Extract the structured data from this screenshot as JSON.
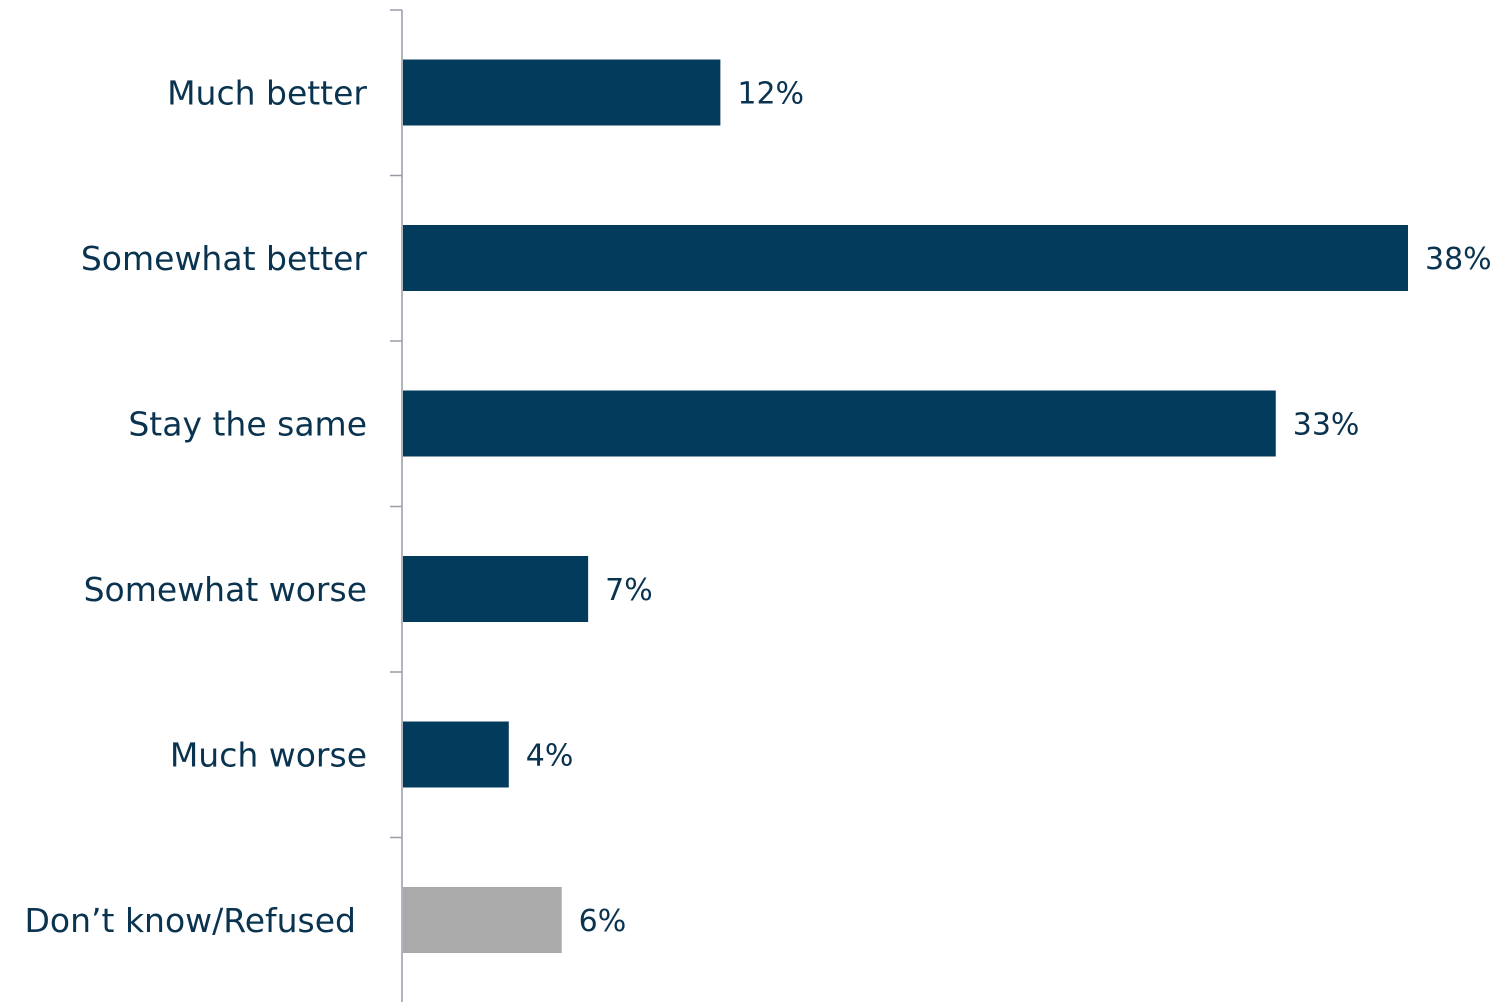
{
  "chart_data": {
    "type": "bar",
    "orientation": "horizontal",
    "categories": [
      "Much better",
      "Somewhat better",
      "Stay the same",
      "Somewhat worse",
      "Much worse",
      "Don’t know/Refused"
    ],
    "values": [
      12,
      38,
      33,
      7,
      4,
      6
    ],
    "value_labels": [
      "12%",
      "38%",
      "33%",
      "7%",
      "4%",
      "6%"
    ],
    "xlim": [
      0,
      38
    ],
    "grid": false,
    "legend": "none",
    "colors": {
      "primary": "#033b5c",
      "secondary": "#aaaaab",
      "axis": "#9a9aa8",
      "text": "#0a3350"
    },
    "bar_colors": [
      "#033b5c",
      "#033b5c",
      "#033b5c",
      "#033b5c",
      "#033b5c",
      "#aaaaab"
    ]
  }
}
